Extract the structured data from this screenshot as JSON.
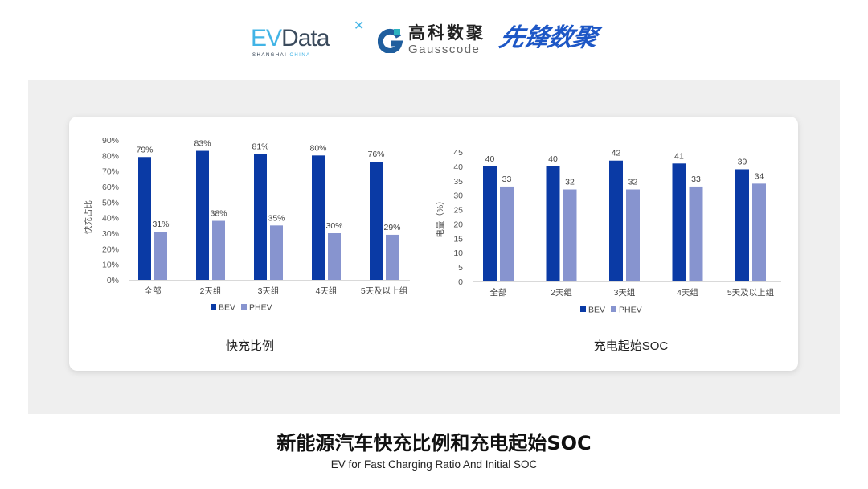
{
  "logos": {
    "evdata": {
      "text_ev": "EV",
      "text_data": "Data",
      "tagline_a": "SHANGHAI",
      "tagline_b": "CHINA"
    },
    "gausscode": {
      "cn": "高科数聚",
      "en": "Gausscode"
    },
    "xianfeng": {
      "cn": "先锋数聚"
    }
  },
  "title": "新能源汽车快充比例和充电起始SOC",
  "subtitle": "EV for Fast Charging Ratio And Initial SOC",
  "colors": {
    "BEV": "#0a3aa5",
    "PHEV": "#8794cf",
    "axis_text": "#555555",
    "panel": "#efefef"
  },
  "chart_data": [
    {
      "type": "bar",
      "title": "快充比例",
      "ylabel": "快充占比",
      "xlabel": "",
      "categories": [
        "全部",
        "2天组",
        "3天组",
        "4天组",
        "5天及以上组"
      ],
      "series": [
        {
          "name": "BEV",
          "values": [
            79,
            83,
            81,
            80,
            76
          ],
          "labels": [
            "79%",
            "83%",
            "81%",
            "80%",
            "76%"
          ]
        },
        {
          "name": "PHEV",
          "values": [
            31,
            38,
            35,
            30,
            29
          ],
          "labels": [
            "31%",
            "38%",
            "35%",
            "30%",
            "29%"
          ]
        }
      ],
      "ylim": [
        0,
        90
      ],
      "yticks": [
        "0%",
        "10%",
        "20%",
        "30%",
        "40%",
        "50%",
        "60%",
        "70%",
        "80%",
        "90%"
      ],
      "grid": false,
      "legend": "bottom"
    },
    {
      "type": "bar",
      "title": "充电起始SOC",
      "ylabel": "电量（%）",
      "xlabel": "",
      "categories": [
        "全部",
        "2天组",
        "3天组",
        "4天组",
        "5天及以上组"
      ],
      "series": [
        {
          "name": "BEV",
          "values": [
            40,
            40,
            42,
            41,
            39
          ],
          "labels": [
            "40",
            "40",
            "42",
            "41",
            "39"
          ]
        },
        {
          "name": "PHEV",
          "values": [
            33,
            32,
            32,
            33,
            34
          ],
          "labels": [
            "33",
            "32",
            "32",
            "33",
            "34"
          ]
        }
      ],
      "ylim": [
        0,
        45
      ],
      "yticks": [
        "0",
        "5",
        "10",
        "15",
        "20",
        "25",
        "30",
        "35",
        "40",
        "45"
      ],
      "grid": false,
      "legend": "bottom"
    }
  ]
}
